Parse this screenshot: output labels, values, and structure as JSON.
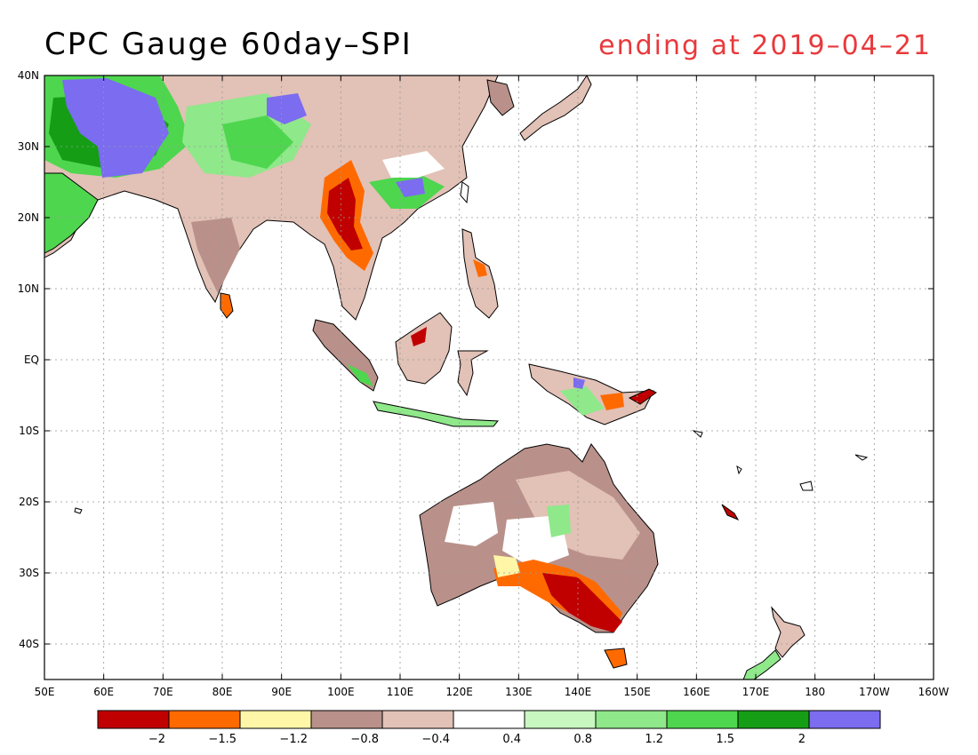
{
  "title": "CPC Gauge 60day–SPI",
  "subtitle": "ending at 2019–04–21",
  "map": {
    "lon_range": [
      50,
      200
    ],
    "lat_range": [
      -45,
      40
    ],
    "lat_ticks": [
      "40N",
      "30N",
      "20N",
      "10N",
      "EQ",
      "10S",
      "20S",
      "30S",
      "40S"
    ],
    "lon_ticks": [
      "50E",
      "60E",
      "70E",
      "80E",
      "90E",
      "100E",
      "110E",
      "120E",
      "130E",
      "140E",
      "150E",
      "160E",
      "170E",
      "180",
      "170W",
      "160W"
    ],
    "grid": "dotted"
  },
  "colorbar": {
    "colors": [
      "#c00000",
      "#ff6a00",
      "#fff6a8",
      "#b9918a",
      "#e2c1b6",
      "#ffffff",
      "#c8f7c0",
      "#8fe88a",
      "#4ed64e",
      "#159e15",
      "#7b6cf0"
    ],
    "labels": [
      "−2",
      "−1.5",
      "−1.2",
      "−0.8",
      "−0.4",
      "0.4",
      "0.8",
      "1.2",
      "1.5",
      "2"
    ]
  }
}
